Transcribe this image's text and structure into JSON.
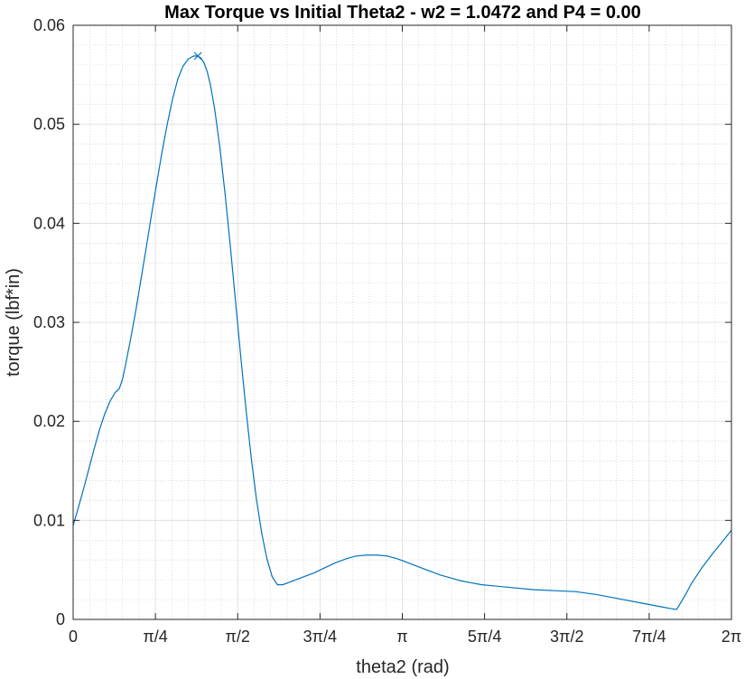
{
  "chart_data": {
    "type": "line",
    "title": "Max Torque vs Initial Theta2 - w2 = 1.0472 and P4 = 0.00",
    "xlabel": "theta2 (rad)",
    "ylabel": "torque (lbf*in)",
    "xlim": [
      0,
      6.283185
    ],
    "ylim": [
      0,
      0.06
    ],
    "grid": true,
    "minor_grid": true,
    "x_ticks": [
      {
        "value": 0,
        "label": "0"
      },
      {
        "value": 0.785398,
        "label": "π/4"
      },
      {
        "value": 1.570796,
        "label": "π/2"
      },
      {
        "value": 2.356194,
        "label": "3π/4"
      },
      {
        "value": 3.141593,
        "label": "π"
      },
      {
        "value": 3.926991,
        "label": "5π/4"
      },
      {
        "value": 4.712389,
        "label": "3π/2"
      },
      {
        "value": 5.497787,
        "label": "7π/4"
      },
      {
        "value": 6.283185,
        "label": "2π"
      }
    ],
    "y_ticks": [
      {
        "value": 0,
        "label": "0"
      },
      {
        "value": 0.01,
        "label": "0.01"
      },
      {
        "value": 0.02,
        "label": "0.02"
      },
      {
        "value": 0.03,
        "label": "0.03"
      },
      {
        "value": 0.04,
        "label": "0.04"
      },
      {
        "value": 0.05,
        "label": "0.05"
      },
      {
        "value": 0.06,
        "label": "0.06"
      }
    ],
    "series": [
      {
        "color": "#0072BD",
        "x": [
          0,
          0.05,
          0.1,
          0.15,
          0.2,
          0.25,
          0.3,
          0.35,
          0.4,
          0.44,
          0.47,
          0.5,
          0.55,
          0.6,
          0.65,
          0.7,
          0.75,
          0.8,
          0.85,
          0.9,
          0.95,
          1.0,
          1.05,
          1.1,
          1.15,
          1.19,
          1.22,
          1.25,
          1.28,
          1.31,
          1.35,
          1.4,
          1.45,
          1.5,
          1.55,
          1.6,
          1.65,
          1.7,
          1.75,
          1.8,
          1.85,
          1.9,
          1.95,
          2.0,
          2.05,
          2.1,
          2.15,
          2.2,
          2.25,
          2.3,
          2.4,
          2.5,
          2.6,
          2.7,
          2.8,
          2.9,
          3.0,
          3.1,
          3.2,
          3.3,
          3.4,
          3.5,
          3.6,
          3.7,
          3.8,
          3.9,
          4.0,
          4.2,
          4.4,
          4.6,
          4.8,
          5.0,
          5.2,
          5.4,
          5.6,
          5.7,
          5.76,
          5.8,
          5.85,
          5.9,
          6.0,
          6.1,
          6.2,
          6.283
        ],
        "y": [
          0.0095,
          0.0113,
          0.0132,
          0.0152,
          0.0172,
          0.0191,
          0.0207,
          0.022,
          0.0229,
          0.0233,
          0.0242,
          0.0257,
          0.0284,
          0.0313,
          0.0345,
          0.0377,
          0.041,
          0.0442,
          0.0473,
          0.0501,
          0.0526,
          0.0546,
          0.0559,
          0.0566,
          0.0569,
          0.0569,
          0.0567,
          0.0562,
          0.0553,
          0.054,
          0.0516,
          0.0477,
          0.043,
          0.0377,
          0.0321,
          0.0265,
          0.0212,
          0.0163,
          0.0121,
          0.0087,
          0.0061,
          0.0043,
          0.0035,
          0.0035,
          0.0037,
          0.0039,
          0.0041,
          0.0043,
          0.0045,
          0.0047,
          0.0052,
          0.0057,
          0.0061,
          0.0064,
          0.0065,
          0.0065,
          0.0064,
          0.0061,
          0.0057,
          0.0053,
          0.0049,
          0.0045,
          0.0042,
          0.0039,
          0.0037,
          0.0035,
          0.0034,
          0.0032,
          0.003,
          0.0029,
          0.0028,
          0.0025,
          0.0021,
          0.0017,
          0.0013,
          0.0011,
          0.001,
          0.0017,
          0.0026,
          0.0036,
          0.0052,
          0.0066,
          0.0079,
          0.009
        ]
      }
    ],
    "marker": {
      "x": 1.19,
      "y": 0.0569,
      "symbol": "x",
      "color": "#0072BD"
    }
  }
}
